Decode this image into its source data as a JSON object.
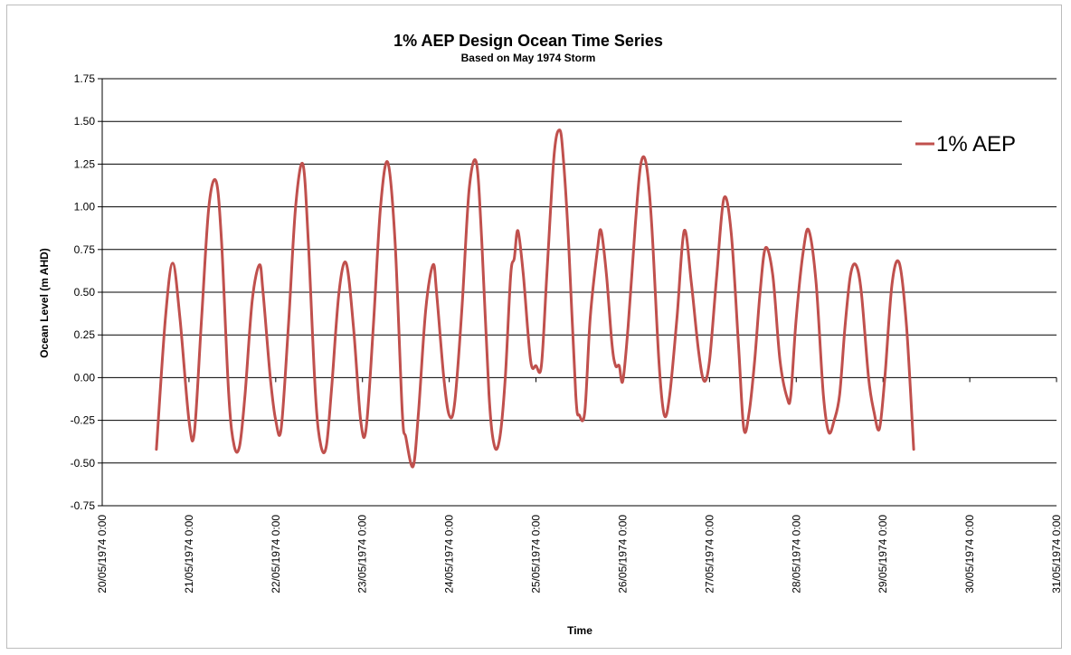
{
  "chart_data": {
    "type": "line",
    "title": "1% AEP Design Ocean Time Series",
    "subtitle": "Based on May 1974 Storm",
    "xlabel": "Time",
    "ylabel": "Ocean Level (m AHD)",
    "ylim": [
      -0.75,
      1.75
    ],
    "yticks": [
      "-0.75",
      "-0.50",
      "-0.25",
      "0.00",
      "0.25",
      "0.50",
      "0.75",
      "1.00",
      "1.25",
      "1.50",
      "1.75"
    ],
    "xlim": [
      "20/05/1974 0:00",
      "31/05/1974 0:00"
    ],
    "xticks": [
      "20/05/1974 0:00",
      "21/05/1974 0:00",
      "22/05/1974 0:00",
      "23/05/1974 0:00",
      "24/05/1974 0:00",
      "25/05/1974 0:00",
      "26/05/1974 0:00",
      "27/05/1974 0:00",
      "28/05/1974 0:00",
      "29/05/1974 0:00",
      "30/05/1974 0:00",
      "31/05/1974 0:00"
    ],
    "grid": "horizontal",
    "legend_position": "right",
    "series": [
      {
        "name": "1% AEP",
        "color": "#c0504d",
        "points": [
          [
            "20/05/1974 15:00",
            -0.42
          ],
          [
            "20/05/1974 17:30",
            0.35
          ],
          [
            "20/05/1974 19:30",
            0.67
          ],
          [
            "20/05/1974 21:30",
            0.35
          ],
          [
            "21/05/1974 0:00",
            -0.25
          ],
          [
            "21/05/1974 1:30",
            -0.32
          ],
          [
            "21/05/1974 3:30",
            0.35
          ],
          [
            "21/05/1974 5:30",
            1.0
          ],
          [
            "21/05/1974 7:30",
            1.15
          ],
          [
            "21/05/1974 9:00",
            0.8
          ],
          [
            "21/05/1974 11:00",
            -0.1
          ],
          [
            "21/05/1974 12:30",
            -0.4
          ],
          [
            "21/05/1974 14:00",
            -0.4
          ],
          [
            "21/05/1974 15:30",
            -0.1
          ],
          [
            "21/05/1974 17:30",
            0.45
          ],
          [
            "21/05/1974 19:30",
            0.66
          ],
          [
            "21/05/1974 20:30",
            0.5
          ],
          [
            "21/05/1974 22:30",
            0.0
          ],
          [
            "22/05/1974 0:00",
            -0.25
          ],
          [
            "22/05/1974 1:30",
            -0.3
          ],
          [
            "22/05/1974 3:30",
            0.3
          ],
          [
            "22/05/1974 5:30",
            1.0
          ],
          [
            "22/05/1974 7:30",
            1.25
          ],
          [
            "22/05/1974 9:00",
            0.8
          ],
          [
            "22/05/1974 11:00",
            -0.1
          ],
          [
            "22/05/1974 12:30",
            -0.4
          ],
          [
            "22/05/1974 14:00",
            -0.4
          ],
          [
            "22/05/1974 15:30",
            -0.05
          ],
          [
            "22/05/1974 17:30",
            0.5
          ],
          [
            "22/05/1974 19:30",
            0.67
          ],
          [
            "22/05/1974 21:30",
            0.3
          ],
          [
            "22/05/1974 23:30",
            -0.25
          ],
          [
            "23/05/1974 1:00",
            -0.3
          ],
          [
            "23/05/1974 3:00",
            0.3
          ],
          [
            "23/05/1974 5:00",
            1.0
          ],
          [
            "23/05/1974 7:00",
            1.26
          ],
          [
            "23/05/1974 9:00",
            0.8
          ],
          [
            "23/05/1974 11:00",
            -0.2
          ],
          [
            "23/05/1974 12:00",
            -0.35
          ],
          [
            "23/05/1974 14:00",
            -0.52
          ],
          [
            "23/05/1974 15:30",
            -0.2
          ],
          [
            "23/05/1974 17:30",
            0.4
          ],
          [
            "23/05/1974 19:30",
            0.66
          ],
          [
            "23/05/1974 20:30",
            0.5
          ],
          [
            "23/05/1974 22:30",
            0.0
          ],
          [
            "24/05/1974 0:00",
            -0.22
          ],
          [
            "24/05/1974 1:30",
            -0.15
          ],
          [
            "24/05/1974 3:30",
            0.4
          ],
          [
            "24/05/1974 5:30",
            1.1
          ],
          [
            "24/05/1974 7:30",
            1.26
          ],
          [
            "24/05/1974 9:00",
            0.8
          ],
          [
            "24/05/1974 11:00",
            -0.1
          ],
          [
            "24/05/1974 12:30",
            -0.4
          ],
          [
            "24/05/1974 14:00",
            -0.35
          ],
          [
            "24/05/1974 15:30",
            0.0
          ],
          [
            "24/05/1974 17:00",
            0.6
          ],
          [
            "24/05/1974 18:00",
            0.7
          ],
          [
            "24/05/1974 19:00",
            0.86
          ],
          [
            "24/05/1974 20:30",
            0.6
          ],
          [
            "24/05/1974 22:30",
            0.1
          ],
          [
            "25/05/1974 0:00",
            0.07
          ],
          [
            "25/05/1974 1:30",
            0.07
          ],
          [
            "25/05/1974 3:00",
            0.6
          ],
          [
            "25/05/1974 5:00",
            1.3
          ],
          [
            "25/05/1974 6:30",
            1.45
          ],
          [
            "25/05/1974 7:30",
            1.3
          ],
          [
            "25/05/1974 9:00",
            0.8
          ],
          [
            "25/05/1974 11:00",
            -0.1
          ],
          [
            "25/05/1974 12:00",
            -0.22
          ],
          [
            "25/05/1974 13:30",
            -0.2
          ],
          [
            "25/05/1974 15:00",
            0.35
          ],
          [
            "25/05/1974 17:00",
            0.75
          ],
          [
            "25/05/1974 18:00",
            0.86
          ],
          [
            "25/05/1974 19:30",
            0.6
          ],
          [
            "25/05/1974 21:00",
            0.2
          ],
          [
            "25/05/1974 22:00",
            0.07
          ],
          [
            "25/05/1974 23:00",
            0.07
          ],
          [
            "26/05/1974 0:00",
            -0.02
          ],
          [
            "26/05/1974 1:30",
            0.3
          ],
          [
            "26/05/1974 3:30",
            0.9
          ],
          [
            "26/05/1974 5:00",
            1.25
          ],
          [
            "26/05/1974 6:30",
            1.25
          ],
          [
            "26/05/1974 8:00",
            0.9
          ],
          [
            "26/05/1974 10:00",
            0.1
          ],
          [
            "26/05/1974 11:30",
            -0.22
          ],
          [
            "26/05/1974 13:00",
            -0.1
          ],
          [
            "26/05/1974 15:00",
            0.35
          ],
          [
            "26/05/1974 17:00",
            0.86
          ],
          [
            "26/05/1974 19:00",
            0.55
          ],
          [
            "26/05/1974 21:00",
            0.15
          ],
          [
            "26/05/1974 22:30",
            -0.02
          ],
          [
            "27/05/1974 0:00",
            0.1
          ],
          [
            "27/05/1974 2:00",
            0.6
          ],
          [
            "27/05/1974 4:00",
            1.05
          ],
          [
            "27/05/1974 6:00",
            0.85
          ],
          [
            "27/05/1974 8:00",
            0.2
          ],
          [
            "27/05/1974 9:30",
            -0.3
          ],
          [
            "27/05/1974 11:00",
            -0.2
          ],
          [
            "27/05/1974 12:30",
            0.1
          ],
          [
            "27/05/1974 14:00",
            0.5
          ],
          [
            "27/05/1974 15:30",
            0.76
          ],
          [
            "27/05/1974 17:30",
            0.6
          ],
          [
            "27/05/1974 19:30",
            0.1
          ],
          [
            "27/05/1974 21:30",
            -0.12
          ],
          [
            "27/05/1974 22:30",
            -0.1
          ],
          [
            "28/05/1974 0:00",
            0.35
          ],
          [
            "28/05/1974 2:00",
            0.75
          ],
          [
            "28/05/1974 3:30",
            0.86
          ],
          [
            "28/05/1974 5:30",
            0.55
          ],
          [
            "28/05/1974 7:30",
            -0.1
          ],
          [
            "28/05/1974 9:00",
            -0.32
          ],
          [
            "28/05/1974 10:30",
            -0.25
          ],
          [
            "28/05/1974 12:00",
            -0.1
          ],
          [
            "28/05/1974 13:30",
            0.3
          ],
          [
            "28/05/1974 15:00",
            0.6
          ],
          [
            "28/05/1974 16:30",
            0.66
          ],
          [
            "28/05/1974 18:00",
            0.5
          ],
          [
            "28/05/1974 20:00",
            0.0
          ],
          [
            "28/05/1974 21:30",
            -0.2
          ],
          [
            "28/05/1974 23:00",
            -0.3
          ],
          [
            "29/05/1974 0:30",
            0.0
          ],
          [
            "29/05/1974 2:30",
            0.55
          ],
          [
            "29/05/1974 4:30",
            0.67
          ],
          [
            "29/05/1974 6:30",
            0.3
          ],
          [
            "29/05/1974 8:30",
            -0.42
          ]
        ]
      }
    ]
  }
}
